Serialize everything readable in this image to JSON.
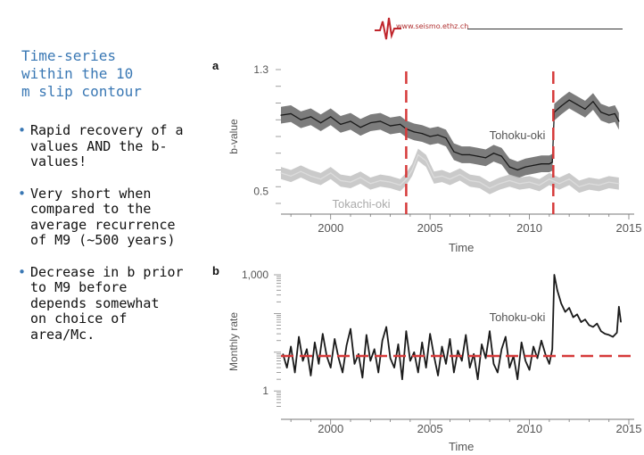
{
  "header": {
    "url": "www.seismo.ethz.ch",
    "colors": {
      "logo": "#c0262c",
      "title": "#3a78b4"
    }
  },
  "slide": {
    "title_lines": [
      "Time-series",
      "within the 10",
      "m slip contour"
    ],
    "bullets": [
      [
        "Rapid recovery of a",
        "values AND the b-",
        "values!"
      ],
      [
        "Very short when",
        "compared to the",
        "average recurrence",
        "of M9 (~500 years)"
      ],
      [
        "Decrease in b prior",
        "to M9  before",
        "depends somewhat",
        "on choice of",
        "area/Mc."
      ]
    ]
  },
  "chart_data": [
    {
      "type": "line",
      "panel_label": "a",
      "ylabel": "b-value",
      "xlabel": "Time",
      "xlim": [
        1997.5,
        2015
      ],
      "ylim": [
        0.42,
        1.3
      ],
      "x_ticks": [
        2000,
        2005,
        2010,
        2015
      ],
      "y_ticks": [
        0.5,
        1.3
      ],
      "vlines": [
        2003.8,
        2011.2
      ],
      "series": [
        {
          "name": "Tohoku-oki",
          "color": "#1a1a1a",
          "band_color": "#6e6e6e",
          "band_width": 0.055,
          "x": [
            1997.5,
            1998,
            1998.5,
            1999,
            1999.5,
            2000,
            2000.5,
            2001,
            2001.5,
            2002,
            2002.5,
            2003,
            2003.5,
            2003.8,
            2004.2,
            2004.6,
            2005,
            2005.4,
            2005.8,
            2006.2,
            2006.6,
            2007,
            2007.4,
            2007.8,
            2008.2,
            2008.6,
            2009,
            2009.4,
            2009.8,
            2010.2,
            2010.6,
            2011,
            2011.15,
            2011.25,
            2011.6,
            2012,
            2012.4,
            2012.8,
            2013.2,
            2013.6,
            2014,
            2014.3,
            2014.5
          ],
          "values": [
            1.0,
            1.01,
            0.97,
            0.99,
            0.95,
            0.99,
            0.94,
            0.96,
            0.92,
            0.95,
            0.96,
            0.93,
            0.94,
            0.91,
            0.89,
            0.88,
            0.86,
            0.87,
            0.85,
            0.76,
            0.74,
            0.74,
            0.73,
            0.72,
            0.75,
            0.73,
            0.66,
            0.64,
            0.66,
            0.67,
            0.68,
            0.68,
            0.69,
            1.02,
            1.06,
            1.1,
            1.07,
            1.04,
            1.09,
            1.02,
            1.0,
            1.01,
            0.96
          ]
        },
        {
          "name": "Tokachi-oki",
          "color": "#dcdcdc",
          "band_color": "#c4c4c4",
          "band_width": 0.04,
          "x": [
            1997.5,
            1998,
            1998.5,
            1999,
            1999.5,
            2000,
            2000.5,
            2001,
            2001.5,
            2002,
            2002.5,
            2003,
            2003.5,
            2003.8,
            2004.1,
            2004.4,
            2004.8,
            2005.2,
            2005.6,
            2006,
            2006.5,
            2007,
            2007.5,
            2008,
            2008.5,
            2009,
            2009.5,
            2010,
            2010.5,
            2011,
            2011.5,
            2012,
            2012.5,
            2013,
            2013.5,
            2014,
            2014.5
          ],
          "values": [
            0.62,
            0.6,
            0.63,
            0.6,
            0.58,
            0.62,
            0.57,
            0.56,
            0.59,
            0.55,
            0.57,
            0.56,
            0.54,
            0.58,
            0.64,
            0.74,
            0.7,
            0.59,
            0.6,
            0.58,
            0.61,
            0.57,
            0.56,
            0.52,
            0.55,
            0.57,
            0.55,
            0.56,
            0.54,
            0.58,
            0.55,
            0.58,
            0.53,
            0.55,
            0.54,
            0.56,
            0.55
          ]
        }
      ]
    },
    {
      "type": "line",
      "panel_label": "b",
      "ylabel": "Monthly rate",
      "xlabel": "Time",
      "xlim": [
        1997.5,
        2015
      ],
      "log_y": true,
      "ylim": [
        0.35,
        1000
      ],
      "x_ticks": [
        2000,
        2005,
        2010,
        2015
      ],
      "y_ticks": [
        1,
        1000
      ],
      "y_tick_labels": [
        "1",
        "1,000"
      ],
      "hline": 8,
      "series": [
        {
          "name": "Tohoku-oki",
          "color": "#1a1a1a",
          "x": [
            1997.6,
            1997.8,
            1998,
            1998.2,
            1998.4,
            1998.6,
            1998.8,
            1999,
            1999.2,
            1999.4,
            1999.6,
            1999.8,
            2000,
            2000.2,
            2000.4,
            2000.6,
            2000.8,
            2001,
            2001.2,
            2001.4,
            2001.6,
            2001.8,
            2002,
            2002.2,
            2002.4,
            2002.6,
            2002.8,
            2003,
            2003.2,
            2003.4,
            2003.6,
            2003.8,
            2004,
            2004.2,
            2004.4,
            2004.6,
            2004.8,
            2005,
            2005.2,
            2005.4,
            2005.6,
            2005.8,
            2006,
            2006.2,
            2006.4,
            2006.6,
            2006.8,
            2007,
            2007.2,
            2007.4,
            2007.6,
            2007.8,
            2008,
            2008.2,
            2008.4,
            2008.6,
            2008.8,
            2009,
            2009.2,
            2009.4,
            2009.6,
            2009.8,
            2010,
            2010.2,
            2010.4,
            2010.6,
            2010.8,
            2011,
            2011.15,
            2011.25,
            2011.4,
            2011.6,
            2011.8,
            2012,
            2012.2,
            2012.4,
            2012.6,
            2012.8,
            2013,
            2013.2,
            2013.4,
            2013.6,
            2013.8,
            2014,
            2014.2,
            2014.4,
            2014.5,
            2014.6
          ],
          "values": [
            9,
            4,
            14,
            3,
            25,
            6,
            12,
            2.5,
            18,
            5,
            30,
            8,
            4,
            22,
            7,
            3,
            15,
            40,
            5,
            9,
            2.2,
            28,
            6,
            12,
            3,
            20,
            45,
            7,
            4,
            16,
            2,
            35,
            6,
            10,
            3,
            18,
            4,
            30,
            8,
            2.5,
            14,
            5,
            22,
            3,
            11,
            6,
            28,
            4,
            9,
            2,
            16,
            7,
            35,
            5,
            3,
            12,
            25,
            4,
            8,
            2,
            18,
            6,
            3.5,
            14,
            7,
            20,
            9,
            5,
            12,
            1000,
            400,
            180,
            110,
            140,
            80,
            95,
            60,
            70,
            50,
            45,
            55,
            35,
            30,
            28,
            25,
            32,
            150,
            60
          ]
        }
      ]
    }
  ]
}
